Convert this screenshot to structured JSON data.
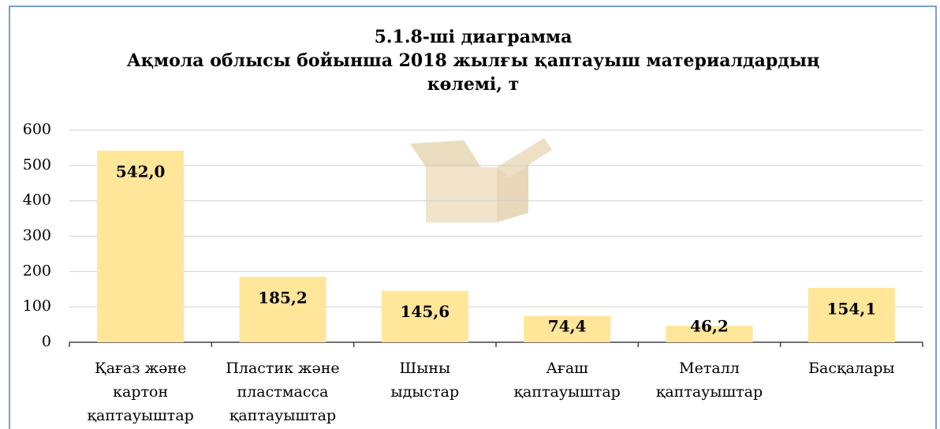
{
  "chart_data": {
    "type": "bar",
    "title": [
      "5.1.8-ші диаграмма",
      "Ақмола облысы бойынша 2018 жылғы қаптауыш материалдардың",
      "көлемі, т"
    ],
    "categories": [
      [
        "Қағаз және",
        "картон",
        "қаптауыштар"
      ],
      [
        "Пластик және",
        "пластмасса",
        "қаптауыштар"
      ],
      [
        "Шыны",
        "ыдыстар"
      ],
      [
        "Ағаш",
        "қаптауыштар"
      ],
      [
        "Металл",
        "қаптауыштар"
      ],
      [
        "Басқалары"
      ]
    ],
    "values": [
      542.0,
      185.2,
      145.6,
      74.4,
      46.2,
      154.1
    ],
    "value_labels": [
      "542,0",
      "185,2",
      "145,6",
      "74,4",
      "46,2",
      "154,1"
    ],
    "color": "#ffe699",
    "ylim": [
      0,
      600
    ],
    "yticks": [
      0,
      100,
      200,
      300,
      400,
      500,
      600
    ],
    "grid": true
  }
}
